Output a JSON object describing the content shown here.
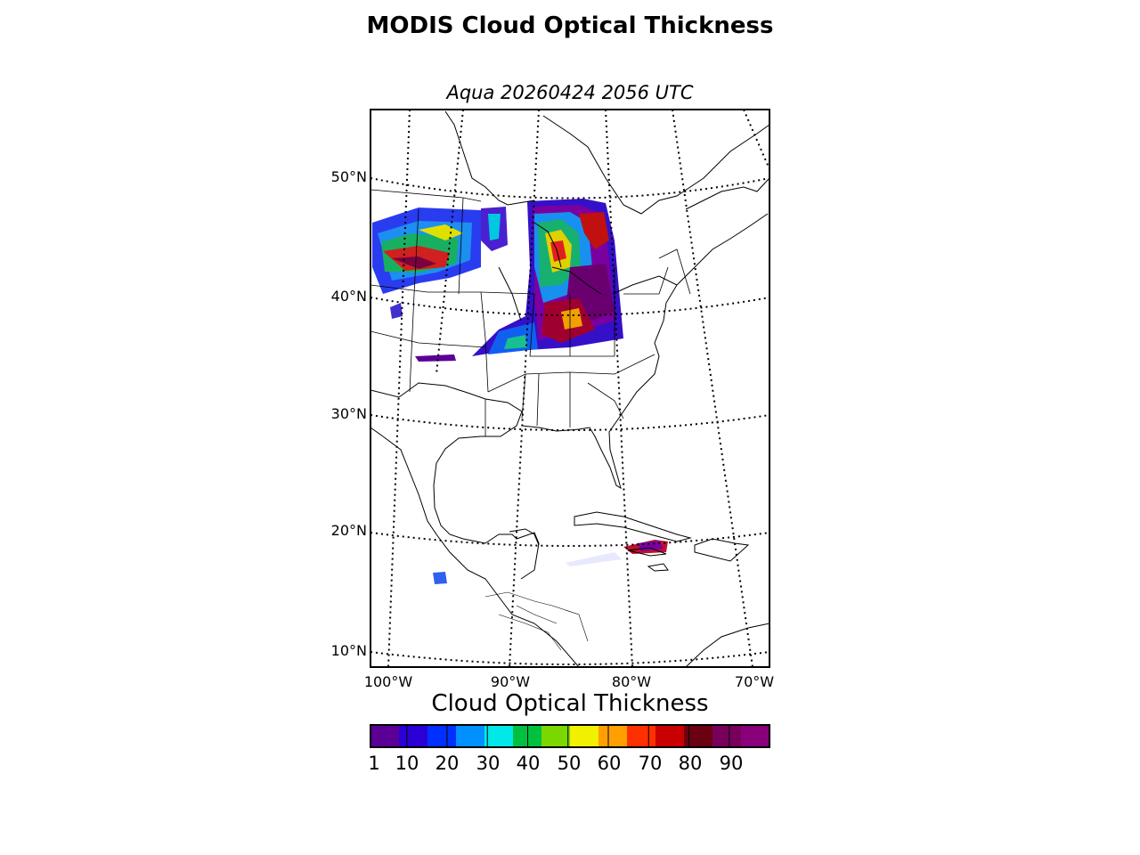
{
  "figure": {
    "title": "MODIS Cloud Optical Thickness",
    "subtitle": "Aqua 20260424 2056 UTC"
  },
  "map": {
    "projection": "lambert-conformal",
    "region": "Eastern North America, Gulf of Mexico and Caribbean",
    "lat_labels": [
      "50°N",
      "40°N",
      "30°N",
      "20°N",
      "10°N"
    ],
    "lon_labels": [
      "100°W",
      "90°W",
      "80°W",
      "70°W"
    ],
    "gridline_style": "dotted",
    "coastline_color": "#000000",
    "data_swaths": [
      "upper-midwest-west-swath",
      "great-lakes-ohio-valley-swath",
      "caribbean-swath"
    ]
  },
  "colorbar": {
    "label": "Cloud Optical Thickness",
    "ticks": [
      "1",
      "10",
      "20",
      "30",
      "40",
      "50",
      "60",
      "70",
      "80",
      "90"
    ],
    "range": [
      1,
      100
    ],
    "colors": [
      "#5b0095",
      "#2a00d5",
      "#0030ff",
      "#0090ff",
      "#00e8e8",
      "#00c040",
      "#7ad800",
      "#f0f000",
      "#ffa000",
      "#ff3000",
      "#c80000",
      "#6b0010",
      "#78005a",
      "#8a007a"
    ]
  }
}
